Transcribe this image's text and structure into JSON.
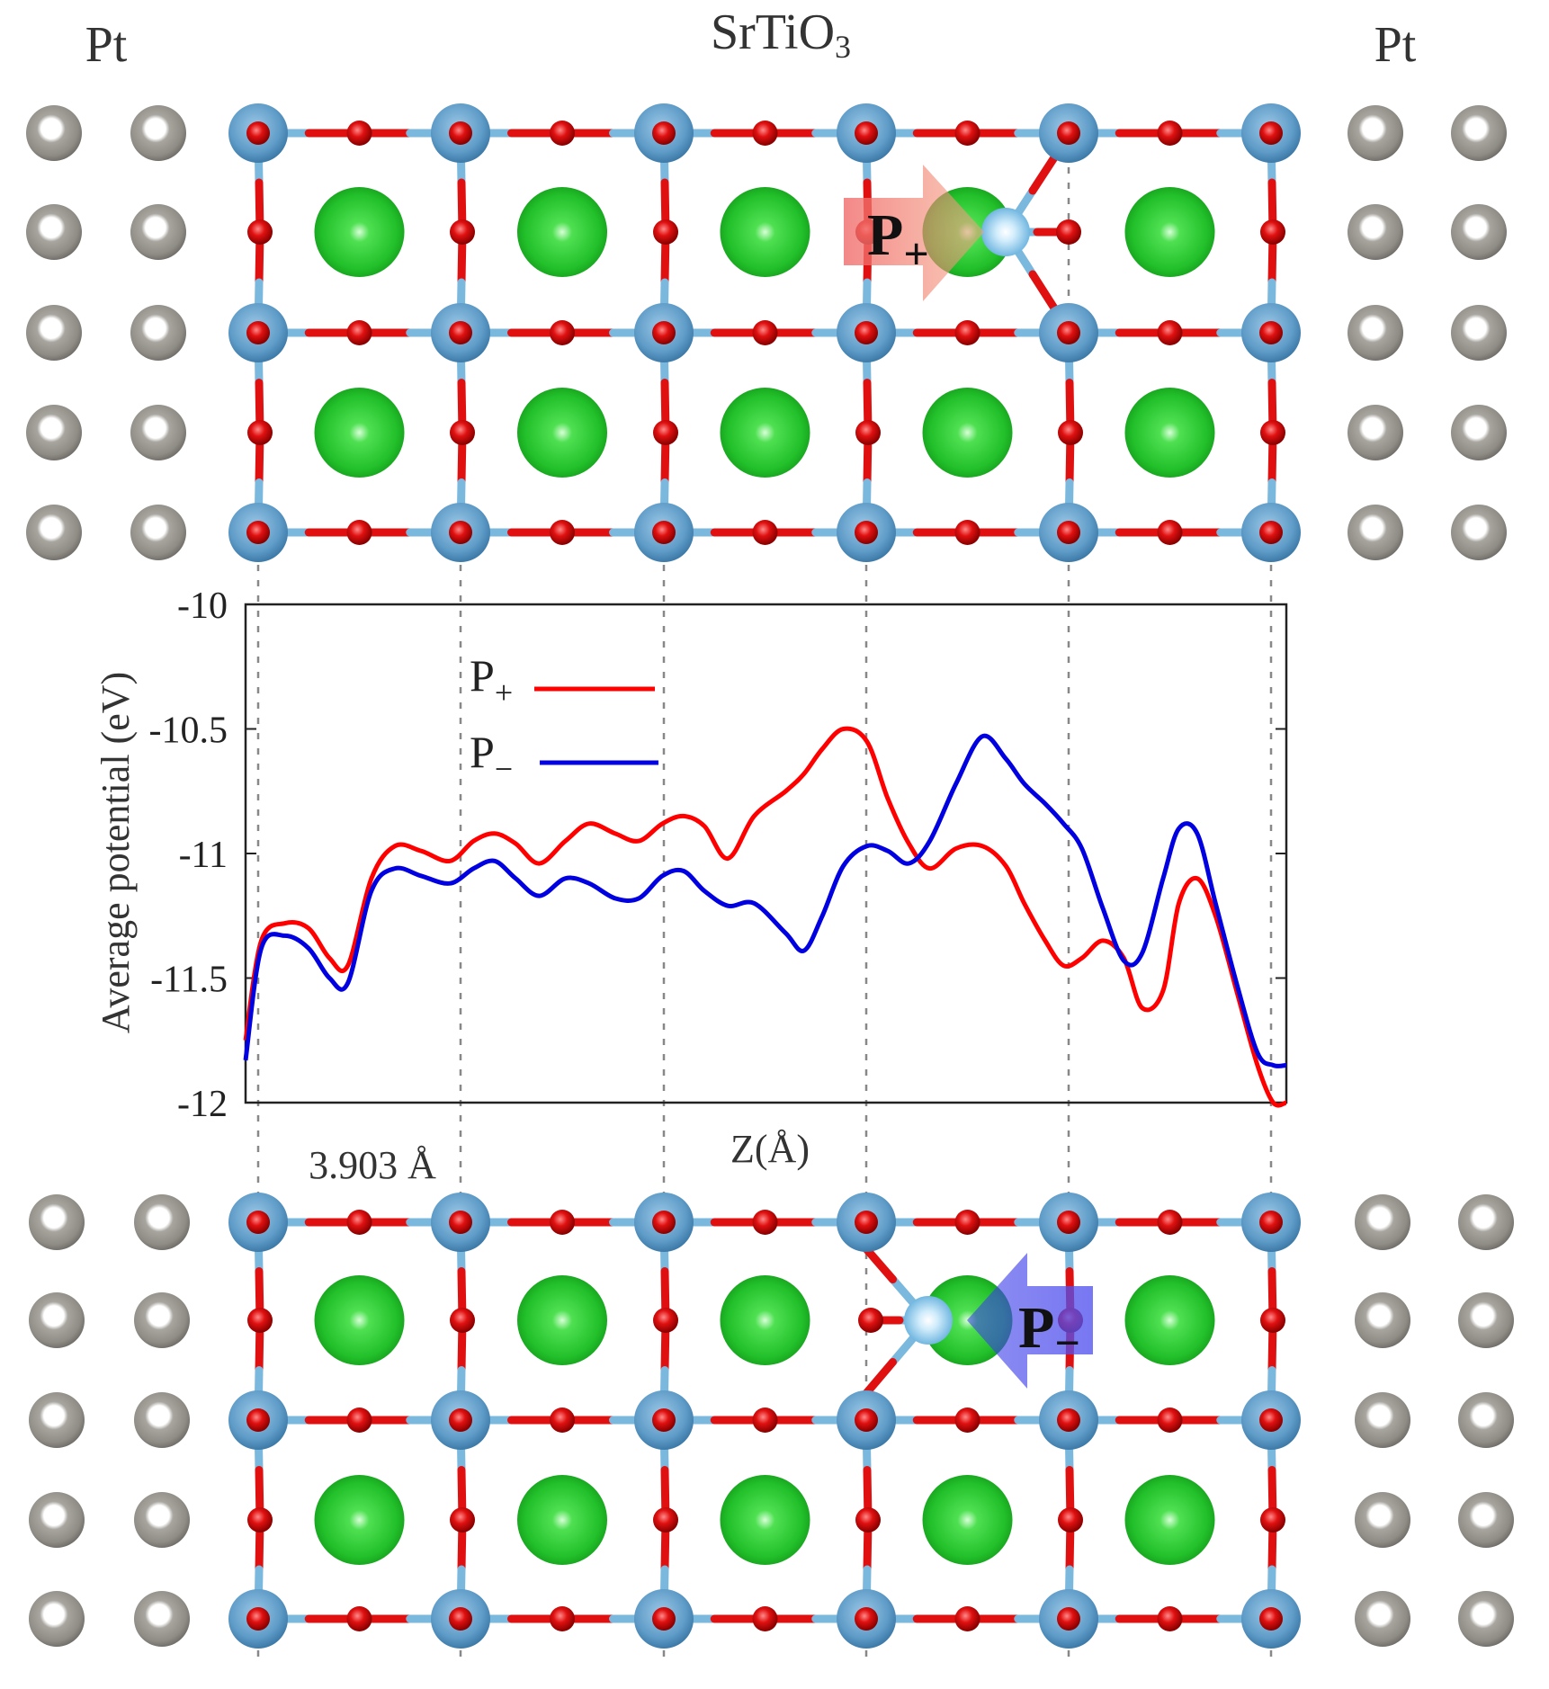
{
  "labels": {
    "left_metal": "Pt",
    "center_material": "SrTiO",
    "center_material_sub": "3",
    "right_metal": "Pt",
    "lattice_spacing": "3.903 Å",
    "arrow_top": "P",
    "arrow_top_sub": "+",
    "arrow_bottom": "P",
    "arrow_bottom_sub": "−"
  },
  "colors": {
    "pt_atom": "#a8a59f",
    "ti_atom": "#5f9cc8",
    "o_atom": "#e01010",
    "sr_atom": "#22c02a",
    "bond_ti": "#7ab8de",
    "bond_o": "#e01010",
    "guide_line": "#888888",
    "arrow_plus": "#f07070",
    "arrow_minus": "#5050f0",
    "series_plus": "#ff0000",
    "series_minus": "#0000e0"
  },
  "chart_data": {
    "type": "line",
    "title": "",
    "xlabel": "Z(Å)",
    "ylabel": "Average potential (eV)",
    "ylim": [
      -12,
      -10
    ],
    "yticks": [
      "-10",
      "-10.5",
      "-11",
      "-11.5",
      "-12"
    ],
    "ytick_values": [
      -10,
      -10.5,
      -11,
      -11.5,
      -12
    ],
    "grid": false,
    "legend_position": "top-left",
    "series": [
      {
        "name": "P",
        "name_sub": "+",
        "color": "#ff0000",
        "x": [
          0,
          0.3,
          0.75,
          1.2,
          1.6,
          1.95,
          2.4,
          2.85,
          3.35,
          3.9,
          4.35,
          4.75,
          5.15,
          5.6,
          6.1,
          6.55,
          7.05,
          7.5,
          7.95,
          8.35,
          8.75,
          9.2,
          9.7,
          10.3,
          10.65,
          11.0,
          11.4,
          11.85,
          12.25,
          12.65,
          13.05,
          13.55,
          14.05,
          14.5,
          14.85,
          15.25,
          15.6,
          15.95,
          16.35,
          16.75,
          17.1,
          17.5,
          17.8,
          18.15,
          18.5,
          18.9,
          19.3,
          19.6,
          19.85
        ],
        "y": [
          -11.75,
          -11.35,
          -11.28,
          -11.3,
          -11.42,
          -11.45,
          -11.1,
          -10.97,
          -10.99,
          -11.03,
          -10.95,
          -10.92,
          -10.96,
          -11.04,
          -10.95,
          -10.88,
          -10.92,
          -10.95,
          -10.88,
          -10.85,
          -10.89,
          -11.02,
          -10.85,
          -10.75,
          -10.68,
          -10.58,
          -10.5,
          -10.55,
          -10.78,
          -10.96,
          -11.06,
          -10.98,
          -10.97,
          -11.05,
          -11.2,
          -11.35,
          -11.45,
          -11.42,
          -11.35,
          -11.42,
          -11.62,
          -11.55,
          -11.2,
          -11.1,
          -11.25,
          -11.55,
          -11.85,
          -12.0,
          -12.0
        ]
      },
      {
        "name": "P",
        "name_sub": "−",
        "color": "#0000e0",
        "x": [
          0,
          0.3,
          0.75,
          1.2,
          1.6,
          1.95,
          2.4,
          2.85,
          3.35,
          3.9,
          4.35,
          4.75,
          5.15,
          5.6,
          6.1,
          6.55,
          7.05,
          7.5,
          7.95,
          8.35,
          8.75,
          9.2,
          9.7,
          10.3,
          10.65,
          11.0,
          11.4,
          11.85,
          12.25,
          12.65,
          13.05,
          13.55,
          14.05,
          14.5,
          14.85,
          15.25,
          15.6,
          15.95,
          16.35,
          16.75,
          17.1,
          17.5,
          17.8,
          18.15,
          18.5,
          18.9,
          19.3,
          19.6,
          19.85
        ],
        "y": [
          -11.83,
          -11.38,
          -11.33,
          -11.38,
          -11.5,
          -11.52,
          -11.15,
          -11.06,
          -11.09,
          -11.12,
          -11.06,
          -11.03,
          -11.1,
          -11.17,
          -11.1,
          -11.12,
          -11.18,
          -11.18,
          -11.09,
          -11.07,
          -11.15,
          -11.21,
          -11.2,
          -11.32,
          -11.39,
          -11.25,
          -11.05,
          -10.97,
          -10.99,
          -11.04,
          -10.95,
          -10.72,
          -10.53,
          -10.62,
          -10.72,
          -10.8,
          -10.88,
          -10.98,
          -11.22,
          -11.43,
          -11.4,
          -11.1,
          -10.9,
          -10.92,
          -11.2,
          -11.52,
          -11.8,
          -11.85,
          -11.85
        ]
      }
    ],
    "xrange": [
      0,
      19.85
    ]
  }
}
